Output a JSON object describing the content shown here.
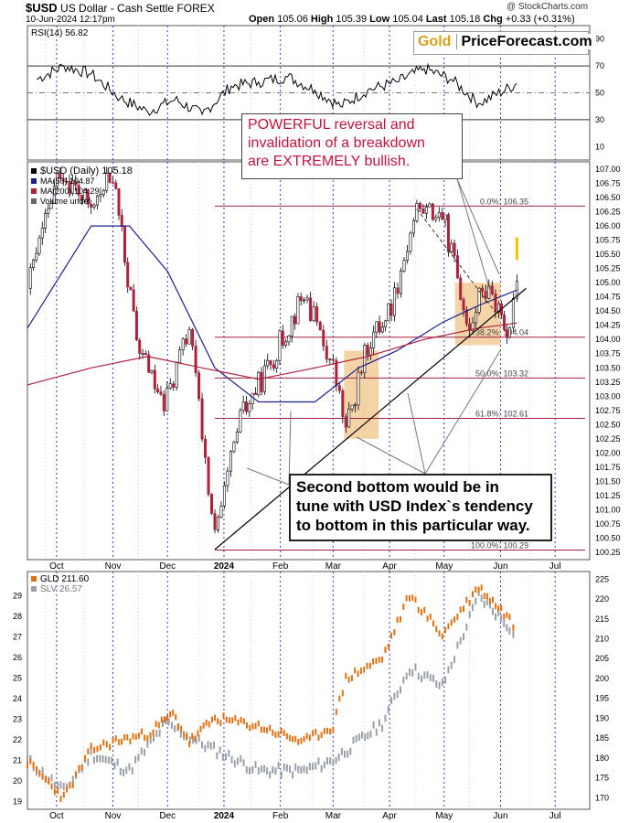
{
  "header": {
    "symbol": "$USD",
    "description": "US Dollar - Cash Settle  FOREX",
    "date": "10-Jun-2024 12:17pm",
    "credit": "@ StockCharts.com",
    "open_label": "Open",
    "open": "105.06",
    "high_label": "High",
    "high": "105.39",
    "low_label": "Low",
    "low": "105.04",
    "last_label": "Last",
    "last": "105.18",
    "chg_label": "Chg",
    "chg": "+0.33 (+0.31%)"
  },
  "logo": {
    "gold": "Gold",
    "rest": "PriceForecast.com"
  },
  "callouts": {
    "top": [
      "POWERFUL reversal and",
      "invalidation of a breakdown",
      "are EXTREMELY bullish."
    ],
    "bottom": [
      "Second bottom would be in",
      "tune with USD Index`s tendency",
      "to bottom in this particular way."
    ]
  },
  "colors": {
    "rsi": "#000000",
    "ma50": "#1e1e8c",
    "ma200": "#b0203c",
    "gld": "#e07010",
    "slv": "#9aa0a8",
    "fib": "#a02040",
    "highlight": "#f0c080"
  },
  "chart_data": [
    {
      "type": "line",
      "title": "RSI(14) 56.82",
      "legend": [
        {
          "label": "RSI(14) 56.82",
          "color": "#000000"
        }
      ],
      "ylim": [
        0,
        100
      ],
      "yticks": [
        "10",
        "30",
        "50",
        "70",
        "90"
      ],
      "levels": [
        30,
        50,
        70
      ],
      "x": [
        "2023-09-20",
        "2023-10-05",
        "2023-10-20",
        "2023-11-05",
        "2023-11-20",
        "2023-12-05",
        "2023-12-20",
        "2024-01-05",
        "2024-01-20",
        "2024-02-05",
        "2024-02-20",
        "2024-03-05",
        "2024-03-20",
        "2024-04-05",
        "2024-04-20",
        "2024-05-05",
        "2024-05-20",
        "2024-06-10"
      ],
      "values": [
        60,
        70,
        64,
        46,
        36,
        45,
        34,
        55,
        58,
        62,
        52,
        40,
        52,
        58,
        68,
        60,
        42,
        56.82
      ]
    },
    {
      "type": "candlestick",
      "title": "$USD (Daily) 105.18",
      "legend": [
        {
          "label": "$USD (Daily) 105.18",
          "color": "#000000"
        },
        {
          "label": "MA(50) 104.87",
          "color": "#1e1e8c"
        },
        {
          "label": "MA(200) 104.29",
          "color": "#b0203c"
        },
        {
          "label": "Volume undef",
          "color": "#666666"
        }
      ],
      "ylim": [
        100.25,
        107.0
      ],
      "yticks": [
        "100.25",
        "100.50",
        "100.75",
        "101.00",
        "101.25",
        "101.50",
        "101.75",
        "102.00",
        "102.25",
        "102.50",
        "102.75",
        "103.00",
        "103.25",
        "103.50",
        "103.75",
        "104.00",
        "104.25",
        "104.50",
        "104.75",
        "105.00",
        "105.25",
        "105.50",
        "105.75",
        "106.00",
        "106.25",
        "106.50",
        "106.75",
        "107.00"
      ],
      "xticks": [
        "Oct",
        "Nov",
        "Dec",
        "2024",
        "Feb",
        "Mar",
        "Apr",
        "May",
        "Jun",
        "Jul"
      ],
      "series": [
        {
          "name": "$USD",
          "x": [
            "2023-09-15",
            "2023-10-03",
            "2023-10-20",
            "2023-11-01",
            "2023-11-14",
            "2023-11-29",
            "2023-12-13",
            "2023-12-27",
            "2024-01-10",
            "2024-01-25",
            "2024-02-14",
            "2024-03-01",
            "2024-03-08",
            "2024-03-20",
            "2024-04-02",
            "2024-04-16",
            "2024-04-30",
            "2024-05-15",
            "2024-05-22",
            "2024-05-31",
            "2024-06-06",
            "2024-06-10"
          ],
          "values": [
            104.9,
            107.0,
            106.3,
            106.9,
            104.0,
            102.8,
            104.2,
            100.5,
            102.6,
            103.5,
            104.8,
            103.5,
            102.4,
            103.9,
            104.6,
            106.3,
            106.2,
            104.2,
            104.9,
            104.6,
            104.0,
            105.18
          ]
        },
        {
          "name": "MA(50)",
          "x": [
            "2023-09-15",
            "2023-10-20",
            "2023-11-10",
            "2023-12-01",
            "2023-12-27",
            "2024-01-20",
            "2024-02-20",
            "2024-03-15",
            "2024-04-05",
            "2024-04-30",
            "2024-05-20",
            "2024-06-10"
          ],
          "values": [
            104.2,
            106.0,
            106.0,
            105.2,
            103.5,
            102.9,
            102.9,
            103.5,
            103.8,
            104.3,
            104.6,
            104.87
          ]
        },
        {
          "name": "MA(200)",
          "x": [
            "2023-09-15",
            "2023-10-20",
            "2023-11-20",
            "2023-12-20",
            "2024-01-20",
            "2024-02-20",
            "2024-03-20",
            "2024-04-20",
            "2024-05-20",
            "2024-06-10"
          ],
          "values": [
            103.2,
            103.5,
            103.7,
            103.5,
            103.3,
            103.5,
            103.7,
            104.0,
            104.2,
            104.29
          ]
        }
      ],
      "fib_levels": [
        {
          "label": "0.0%: 106.35",
          "value": 106.35
        },
        {
          "label": "38.2%: 104.04",
          "value": 104.04
        },
        {
          "label": "50.0%: 103.32",
          "value": 103.32
        },
        {
          "label": "61.8%: 102.61",
          "value": 102.61
        },
        {
          "label": "100.0%: 100.29",
          "value": 100.29
        }
      ]
    },
    {
      "type": "line",
      "legend": [
        {
          "label": "GLD 211.60",
          "color": "#e07010"
        },
        {
          "label": "SLV 26.57",
          "color": "#9aa0a8"
        }
      ],
      "left_axis": {
        "ylim": [
          18.8,
          30.0
        ],
        "yticks": [
          "19",
          "20",
          "21",
          "22",
          "23",
          "24",
          "25",
          "26",
          "27",
          "28",
          "29"
        ]
      },
      "right_axis": {
        "ylim": [
          168,
          226
        ],
        "yticks": [
          "170",
          "175",
          "180",
          "185",
          "190",
          "195",
          "200",
          "205",
          "210",
          "215",
          "220",
          "225"
        ]
      },
      "xticks": [
        "Oct",
        "Nov",
        "Dec",
        "2024",
        "Feb",
        "Mar",
        "Apr",
        "May",
        "Jun",
        "Jul"
      ],
      "series": [
        {
          "name": "GLD",
          "axis": "right",
          "x": [
            "2023-09-15",
            "2023-10-05",
            "2023-10-20",
            "2023-11-01",
            "2023-11-20",
            "2023-12-04",
            "2023-12-13",
            "2023-12-27",
            "2024-01-20",
            "2024-02-14",
            "2024-03-01",
            "2024-03-08",
            "2024-03-28",
            "2024-04-12",
            "2024-04-30",
            "2024-05-20",
            "2024-06-06",
            "2024-06-10"
          ],
          "values": [
            179,
            170,
            182,
            184,
            186,
            191,
            184,
            190,
            188,
            184,
            188,
            200,
            205,
            221,
            211,
            223,
            215,
            211.6
          ]
        },
        {
          "name": "SLV",
          "axis": "left",
          "x": [
            "2023-09-15",
            "2023-10-05",
            "2023-10-20",
            "2023-11-10",
            "2023-11-30",
            "2023-12-20",
            "2024-01-20",
            "2024-02-14",
            "2024-03-01",
            "2024-03-28",
            "2024-04-12",
            "2024-04-30",
            "2024-05-20",
            "2024-06-06",
            "2024-06-10"
          ],
          "values": [
            21.0,
            19.5,
            21.3,
            20.5,
            22.8,
            21.8,
            20.5,
            20.5,
            21.0,
            22.8,
            25.5,
            24.6,
            29.0,
            27.5,
            26.57
          ]
        }
      ]
    }
  ]
}
